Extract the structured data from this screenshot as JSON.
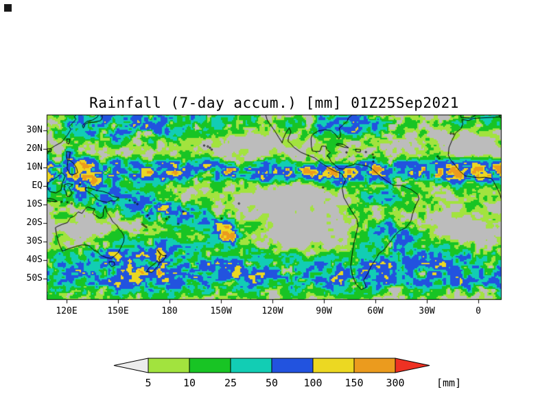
{
  "title": "Rainfall (7-day accum.) [mm] 01Z25Sep2021",
  "map": {
    "lat_labels": [
      "30N",
      "20N",
      "10N",
      "EQ",
      "10S",
      "20S",
      "30S",
      "40S",
      "50S"
    ],
    "lon_labels": [
      "120E",
      "150E",
      "180",
      "150W",
      "120W",
      "90W",
      "60W",
      "30W",
      "0"
    ],
    "background_color": "#bcbcbc",
    "coastline_color": "#000000",
    "frame_color": "#000000"
  },
  "colorbar": {
    "tick_labels": [
      "5",
      "10",
      "25",
      "50",
      "100",
      "150",
      "300"
    ],
    "unit_label": "[mm]",
    "thresholds": [
      5,
      10,
      25,
      50,
      100,
      150,
      300
    ],
    "segment_colors": [
      "#ececec",
      "#a2e33e",
      "#18c424",
      "#12cdb4",
      "#2253df",
      "#ecd822",
      "#eb9b1e",
      "#ee3123"
    ]
  }
}
